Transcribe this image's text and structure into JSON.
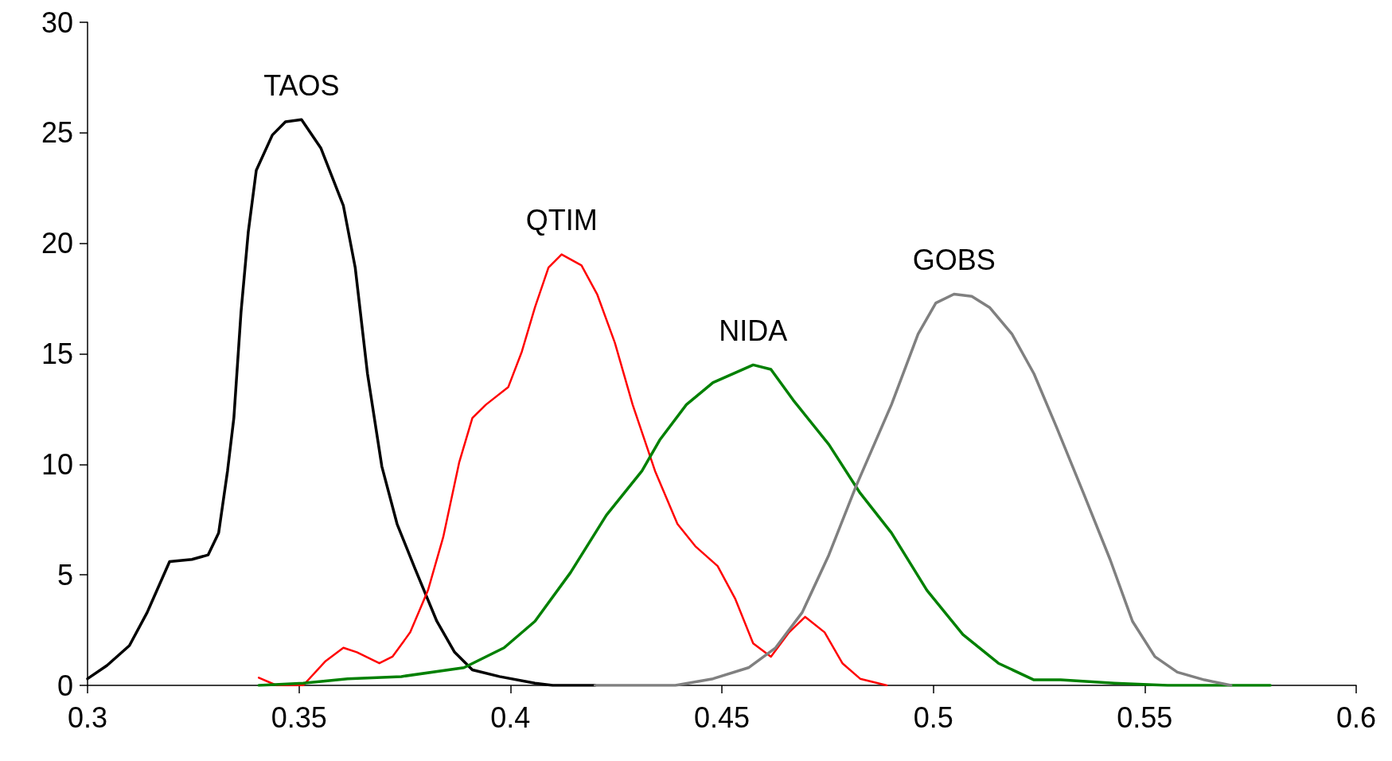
{
  "chart_data": {
    "type": "line",
    "marker": "none",
    "line_style": "solid",
    "grid": false,
    "legend": false,
    "xlim": [
      0.3,
      0.6
    ],
    "xticks": [
      0.3,
      0.35,
      0.4,
      0.45,
      0.5,
      0.55,
      0.6
    ],
    "ylim": [
      0,
      30
    ],
    "yticks": [
      0,
      5,
      10,
      15,
      20,
      25,
      30
    ],
    "series": [
      {
        "name": "TAOS",
        "color": "#000000",
        "x": [
          0.3,
          0.3046,
          0.3099,
          0.3141,
          0.3194,
          0.3247,
          0.3285,
          0.331,
          0.3331,
          0.3346,
          0.3363,
          0.338,
          0.3399,
          0.3437,
          0.3468,
          0.3506,
          0.3552,
          0.3605,
          0.3633,
          0.3662,
          0.3696,
          0.3732,
          0.3774,
          0.3826,
          0.3868,
          0.391,
          0.3974,
          0.4058,
          0.41,
          0.42
        ],
        "values": [
          0.3,
          0.9,
          1.8,
          3.3,
          5.6,
          5.7,
          5.9,
          6.9,
          9.7,
          12.1,
          16.9,
          20.5,
          23.3,
          24.9,
          25.5,
          25.6,
          24.3,
          21.7,
          18.9,
          14.1,
          9.9,
          7.3,
          5.3,
          2.9,
          1.5,
          0.7,
          0.4,
          0.1,
          0,
          0
        ]
      },
      {
        "name": "QTIM",
        "color": "#ff0000",
        "x": [
          0.3405,
          0.3447,
          0.351,
          0.3563,
          0.3605,
          0.3637,
          0.369,
          0.3721,
          0.3763,
          0.3805,
          0.3841,
          0.3879,
          0.391,
          0.3942,
          0.3995,
          0.4027,
          0.4058,
          0.409,
          0.4121,
          0.4168,
          0.4205,
          0.4247,
          0.4289,
          0.4342,
          0.4395,
          0.4437,
          0.449,
          0.4532,
          0.4574,
          0.4616,
          0.4659,
          0.4697,
          0.4743,
          0.4785,
          0.4827,
          0.489
        ],
        "values": [
          0.35,
          0,
          0,
          1.1,
          1.7,
          1.5,
          1.0,
          1.3,
          2.4,
          4.3,
          6.7,
          10.1,
          12.1,
          12.7,
          13.5,
          15.1,
          17.1,
          18.9,
          19.5,
          19.0,
          17.7,
          15.5,
          12.7,
          9.7,
          7.3,
          6.3,
          5.4,
          3.9,
          1.9,
          1.3,
          2.4,
          3.1,
          2.4,
          1.0,
          0.3,
          0
        ]
      },
      {
        "name": "NIDA",
        "color": "#008000",
        "x": [
          0.3405,
          0.351,
          0.3615,
          0.3742,
          0.389,
          0.3985,
          0.4058,
          0.4142,
          0.4227,
          0.4311,
          0.4353,
          0.4416,
          0.4479,
          0.4574,
          0.4616,
          0.4669,
          0.4753,
          0.4827,
          0.4901,
          0.4985,
          0.507,
          0.5154,
          0.5238,
          0.5301,
          0.5428,
          0.5554,
          0.5797
        ],
        "values": [
          0,
          0.1,
          0.3,
          0.4,
          0.8,
          1.7,
          2.9,
          5.1,
          7.7,
          9.7,
          11.1,
          12.7,
          13.7,
          14.5,
          14.3,
          12.9,
          10.9,
          8.7,
          6.9,
          4.3,
          2.3,
          1.0,
          0.25,
          0.25,
          0.1,
          0,
          0
        ]
      },
      {
        "name": "GOBS",
        "color": "#808080",
        "x": [
          0.42,
          0.439,
          0.4479,
          0.4563,
          0.4627,
          0.469,
          0.4753,
          0.4817,
          0.4901,
          0.4964,
          0.5006,
          0.5049,
          0.5091,
          0.5133,
          0.5186,
          0.5238,
          0.5291,
          0.5355,
          0.5418,
          0.5471,
          0.5524,
          0.5577,
          0.5641,
          0.5704
        ],
        "values": [
          0,
          0,
          0.3,
          0.8,
          1.7,
          3.3,
          5.9,
          9,
          12.7,
          15.9,
          17.3,
          17.7,
          17.6,
          17.1,
          15.9,
          14.1,
          11.7,
          8.7,
          5.7,
          2.9,
          1.3,
          0.6,
          0.25,
          0
        ]
      }
    ]
  }
}
